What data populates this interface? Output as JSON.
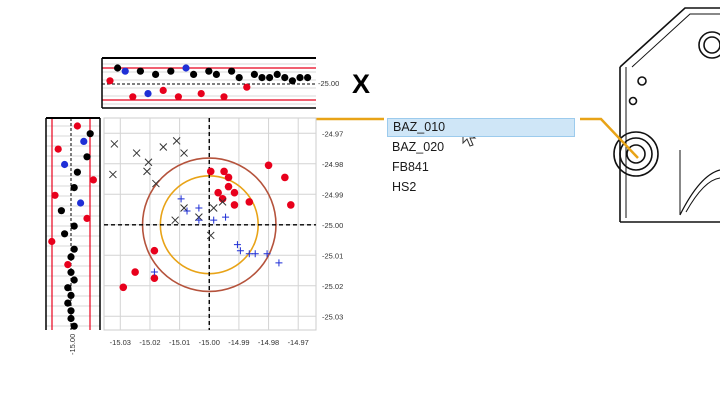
{
  "axis_letter": "X",
  "top_strip_label": "-25.00",
  "left_strip_label": "-15.00",
  "part_list": {
    "items": [
      "BAZ_010",
      "BAZ_020",
      "FB841",
      "HS2"
    ],
    "selected_index": 0
  },
  "colors": {
    "red": "#e8001c",
    "blue": "#1f2fd6",
    "black": "#000000",
    "circle_outer": "#b5533c",
    "circle_inner": "#e8a317",
    "leader": "#e8a317"
  },
  "chart_data": {
    "type": "scatter",
    "title": "",
    "xlabel": "",
    "ylabel": "",
    "x_ticks": [
      "-15.03",
      "-15.02",
      "-15.01",
      "-15.00",
      "-14.99",
      "-14.98",
      "-14.97"
    ],
    "y_ticks": [
      "-24.97",
      "-24.98",
      "-24.99",
      "-25.00",
      "-25.01",
      "-25.02",
      "-25.03"
    ],
    "xlim": [
      -15.0355,
      -14.964
    ],
    "ylim": [
      -25.0345,
      -24.965
    ],
    "grid": true,
    "nominal": {
      "x": -15.0,
      "y": -25.0
    },
    "circles": [
      {
        "name": "outer",
        "center": [
          -15.0,
          -25.0
        ],
        "radius": 0.0225
      },
      {
        "name": "inner",
        "center": [
          -15.0,
          -25.0
        ],
        "radius": 0.0165
      }
    ],
    "series": [
      {
        "marker": "dot",
        "color": "red",
        "points": [
          [
            -14.9995,
            -24.9825
          ],
          [
            -14.995,
            -24.9825
          ],
          [
            -14.9935,
            -24.9845
          ],
          [
            -14.9935,
            -24.9875
          ],
          [
            -14.997,
            -24.9895
          ],
          [
            -14.9915,
            -24.9895
          ],
          [
            -14.9915,
            -24.9935
          ],
          [
            -14.9955,
            -24.9915
          ],
          [
            -14.98,
            -24.9805
          ],
          [
            -14.9745,
            -24.9845
          ],
          [
            -14.9725,
            -24.9935
          ],
          [
            -14.9865,
            -24.9925
          ],
          [
            -15.0185,
            -25.0085
          ],
          [
            -15.025,
            -25.0155
          ],
          [
            -15.029,
            -25.0205
          ],
          [
            -15.0185,
            -25.0175
          ]
        ]
      },
      {
        "marker": "x",
        "color": "black",
        "points": [
          [
            -15.032,
            -24.9735
          ],
          [
            -15.0325,
            -24.9835
          ],
          [
            -15.0245,
            -24.9765
          ],
          [
            -15.0205,
            -24.9795
          ],
          [
            -15.0155,
            -24.9745
          ],
          [
            -15.011,
            -24.9725
          ],
          [
            -15.0085,
            -24.9765
          ],
          [
            -15.021,
            -24.9825
          ],
          [
            -15.018,
            -24.9865
          ],
          [
            -15.0085,
            -24.9945
          ],
          [
            -15.0035,
            -24.9975
          ],
          [
            -14.9985,
            -24.9945
          ],
          [
            -14.9955,
            -24.9925
          ],
          [
            -15.0115,
            -24.9985
          ],
          [
            -14.9995,
            -25.0035
          ]
        ]
      },
      {
        "marker": "plus",
        "color": "blue",
        "points": [
          [
            -15.0095,
            -24.9915
          ],
          [
            -15.0075,
            -24.9955
          ],
          [
            -15.0035,
            -24.9945
          ],
          [
            -15.0035,
            -24.9985
          ],
          [
            -14.9985,
            -24.9985
          ],
          [
            -14.9945,
            -24.9975
          ],
          [
            -14.9905,
            -25.0065
          ],
          [
            -14.9895,
            -25.0085
          ],
          [
            -14.9865,
            -25.0095
          ],
          [
            -14.9845,
            -25.0095
          ],
          [
            -14.9805,
            -25.0095
          ],
          [
            -14.9765,
            -25.0125
          ],
          [
            -15.0185,
            -25.0155
          ]
        ]
      }
    ]
  }
}
